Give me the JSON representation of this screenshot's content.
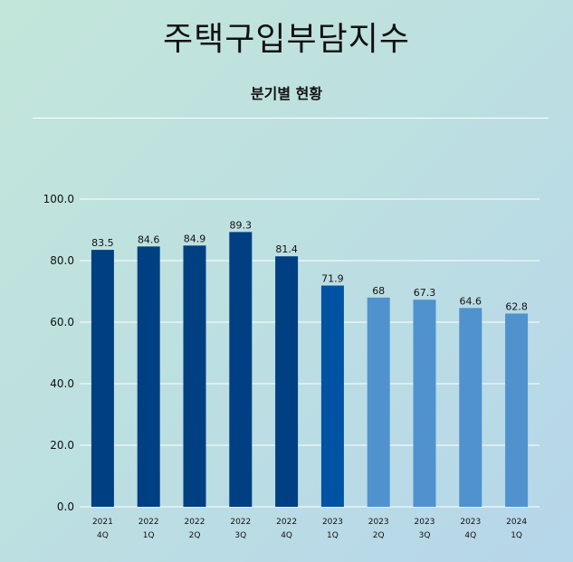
{
  "header": {
    "title": "주택구입부담지수",
    "subtitle": "분기별 현황"
  },
  "chart_data": {
    "type": "bar",
    "title": "주택구입부담지수",
    "subtitle": "분기별 현황",
    "categories": [
      [
        "2021",
        "4Q"
      ],
      [
        "2022",
        "1Q"
      ],
      [
        "2022",
        "2Q"
      ],
      [
        "2022",
        "3Q"
      ],
      [
        "2022",
        "4Q"
      ],
      [
        "2023",
        "1Q"
      ],
      [
        "2023",
        "2Q"
      ],
      [
        "2023",
        "3Q"
      ],
      [
        "2023",
        "4Q"
      ],
      [
        "2024",
        "1Q"
      ]
    ],
    "values": [
      83.5,
      84.6,
      84.9,
      89.3,
      81.4,
      71.9,
      68,
      67.3,
      64.6,
      62.8
    ],
    "value_labels": [
      "83.5",
      "84.6",
      "84.9",
      "89.3",
      "81.4",
      "71.9",
      "68",
      "67.3",
      "64.6",
      "62.8"
    ],
    "bar_colors": [
      "#003f82",
      "#003f82",
      "#003f82",
      "#003f82",
      "#003f82",
      "#0052a3",
      "#4f92cd",
      "#4f92cd",
      "#4f92cd",
      "#4f92cd"
    ],
    "ylim": [
      0,
      100
    ],
    "yticks": [
      "0.0",
      "20.0",
      "40.0",
      "60.0",
      "80.0",
      "100.0"
    ],
    "grid": true,
    "xlabel": "",
    "ylabel": ""
  }
}
